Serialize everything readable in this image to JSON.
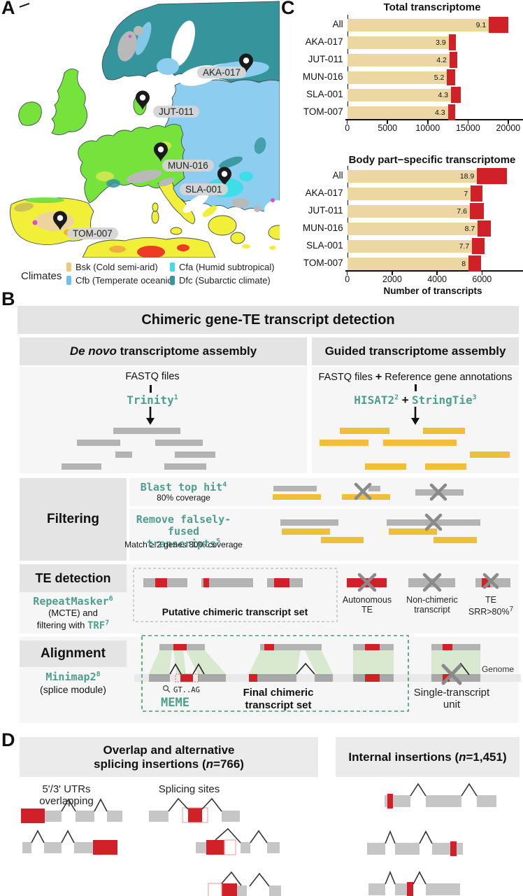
{
  "colors": {
    "tan_bar": "#ecd7a2",
    "te_red": "#cf2127",
    "teal_text": "#4f9e8c",
    "gray_bar": "#b3b3b3",
    "yellow_bar": "#f0bf3a",
    "green_fill": "#d9e9d0",
    "dashed_green": "#3da06a"
  },
  "panel_a": {
    "label": "A",
    "pins": [
      {
        "id": "AKA-017"
      },
      {
        "id": "JUT-011"
      },
      {
        "id": "MUN-016"
      },
      {
        "id": "SLA-001"
      },
      {
        "id": "TOM-007"
      }
    ],
    "legend": {
      "title": "Climates",
      "items": [
        {
          "code": "Bsk (Cold semi-arid)",
          "color": "#eac87e"
        },
        {
          "code": "Cfb (Temperate oceanic)",
          "color": "#6ec0ee"
        },
        {
          "code": "Cfa (Humid subtropical)",
          "color": "#3edee8"
        },
        {
          "code": "Dfc (Subarctic climate)",
          "color": "#35949c"
        }
      ]
    }
  },
  "panel_c": {
    "label": "C",
    "chart_data": [
      {
        "type": "bar",
        "title": "Total transcriptome",
        "categories": [
          "All",
          "AKA-017",
          "JUT-011",
          "MUN-016",
          "SLA-001",
          "TOM-007"
        ],
        "series": [
          {
            "name": "transcripts",
            "values": [
              17600,
              12600,
              12700,
              12400,
              12900,
              12500
            ]
          },
          {
            "name": "chimeric transcripts",
            "values": [
              2400,
              900,
              1000,
              1000,
              1200,
              900
            ]
          }
        ],
        "total_values": [
          20000,
          13500,
          13700,
          13400,
          14100,
          13400
        ],
        "pct_labels": [
          "9.1",
          "3.9",
          "4.2",
          "5.2",
          "4.3",
          "4.3"
        ],
        "xticks": [
          0,
          5000,
          10000,
          15000,
          20000
        ],
        "xmax": 21200,
        "xlabel": ""
      },
      {
        "type": "bar",
        "title": "Body part−specific transcriptome",
        "categories": [
          "All",
          "AKA-017",
          "JUT-011",
          "MUN-016",
          "SLA-001",
          "TOM-007"
        ],
        "series": [
          {
            "name": "transcripts",
            "values": [
              5780,
              5500,
              5460,
              5810,
              5560,
              5400
            ]
          },
          {
            "name": "chimeric transcripts",
            "values": [
              1330,
              520,
              620,
              580,
              560,
              550
            ]
          }
        ],
        "total_values": [
          7110,
          6020,
          6080,
          6390,
          6120,
          5950
        ],
        "pct_labels": [
          "18.9",
          "7",
          "7.6",
          "8.7",
          "7.7",
          "8"
        ],
        "xticks": [
          0,
          2000,
          4000,
          6000
        ],
        "xmax": 7600,
        "xlabel": "Number of transcripts"
      }
    ]
  },
  "panel_b": {
    "label": "B",
    "title": "Chimeric gene-TE transcript detection",
    "denovo_header_em": "De novo",
    "denovo_header_rest": " transcriptome assembly",
    "guided_header": "Guided transcriptome assembly",
    "denovo_input": "FASTQ files",
    "denovo_tool": "Trinity",
    "denovo_tool_sup": "1",
    "guided_input_a": "FASTQ files",
    "guided_plus": "+",
    "guided_input_b": "Reference gene annotations",
    "guided_tool_a": "HISAT2",
    "guided_tool_a_sup": "2",
    "guided_tool_b": "StringTie",
    "guided_tool_b_sup": "3",
    "filtering_label": "Filtering",
    "filter1_tool": "Blast top hit",
    "filter1_sup": "4",
    "filter1_note": "80% coverage",
    "filter2_tool_l1": "Remove falsely-",
    "filter2_tool_l2": "fused transcripts",
    "filter2_sup": "5",
    "filter2_note": "Match ≥ 2 genes 80% coverage",
    "te_label": "TE detection",
    "te_tool": "RepeatMasker",
    "te_tool_sup": "6",
    "te_line2": "(MCTE) and",
    "te_line3a": "filtering with ",
    "te_line3_tool": "TRF",
    "te_line3_sup": "7",
    "te_box_label": "Putative chimeric transcript set",
    "reject1_l1": "Autonomous",
    "reject1_l2": "TE",
    "reject2_l1": "Non-chimeric",
    "reject2_l2": "transcript",
    "reject3_l1": "TE",
    "reject3_l2": "SRR>80%",
    "reject3_sup": "7",
    "align_label": "Alignment",
    "align_tool": "Minimap2",
    "align_tool_sup": "8",
    "align_module": "(splice module)",
    "motif": "GT..AG",
    "meme": "MEME",
    "final_l1": "Final chimeric",
    "final_l2": "transcript set",
    "single_l1": "Single-transcript",
    "single_l2": "unit",
    "genome": "Genome"
  },
  "panel_d": {
    "label": "D",
    "left_l1": "Overlap and alternative",
    "left_l2_pre": "splicing insertions (",
    "left_n": "n",
    "left_count": "=766)",
    "right_pre": "Internal insertions (",
    "right_n": "n",
    "right_count": "=1,451)",
    "sub_left": "5'/3' UTRs overlapping",
    "sub_mid": "Splicing sites"
  }
}
